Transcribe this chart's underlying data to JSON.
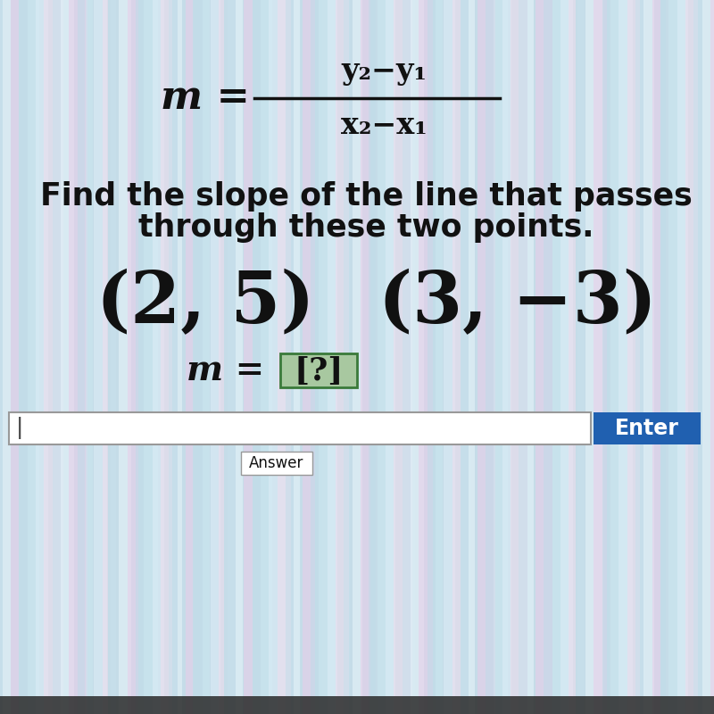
{
  "bg_color": "#c5dce8",
  "numerator": "y₂−y₁",
  "denominator": "x₂−x₁",
  "instruction_line1": "Find the slope of the line that passes",
  "instruction_line2": "through these two points.",
  "point1": "(2, 5)",
  "point2": "(3, −3)",
  "answer_label": "m = ",
  "answer_box_text": "[?]",
  "enter_button": "Enter",
  "answer_button": "Answer",
  "text_color": "#111111",
  "enter_bg": "#2060b0",
  "enter_text": "#ffffff",
  "box_border": "#999999",
  "fraction_bar_color": "#111111",
  "answer_box_bg": "#a8c8a0",
  "answer_box_border": "#3a7a3a",
  "bottom_dark": "#2a2a2a",
  "stripe_colors": [
    "#cce8f0",
    "#ddeef8",
    "#f0dded",
    "#c8e0ec",
    "#e8f4fa",
    "#eacce8",
    "#c0dce8"
  ],
  "stripe_alpha": 0.55,
  "num_stripes": 60
}
